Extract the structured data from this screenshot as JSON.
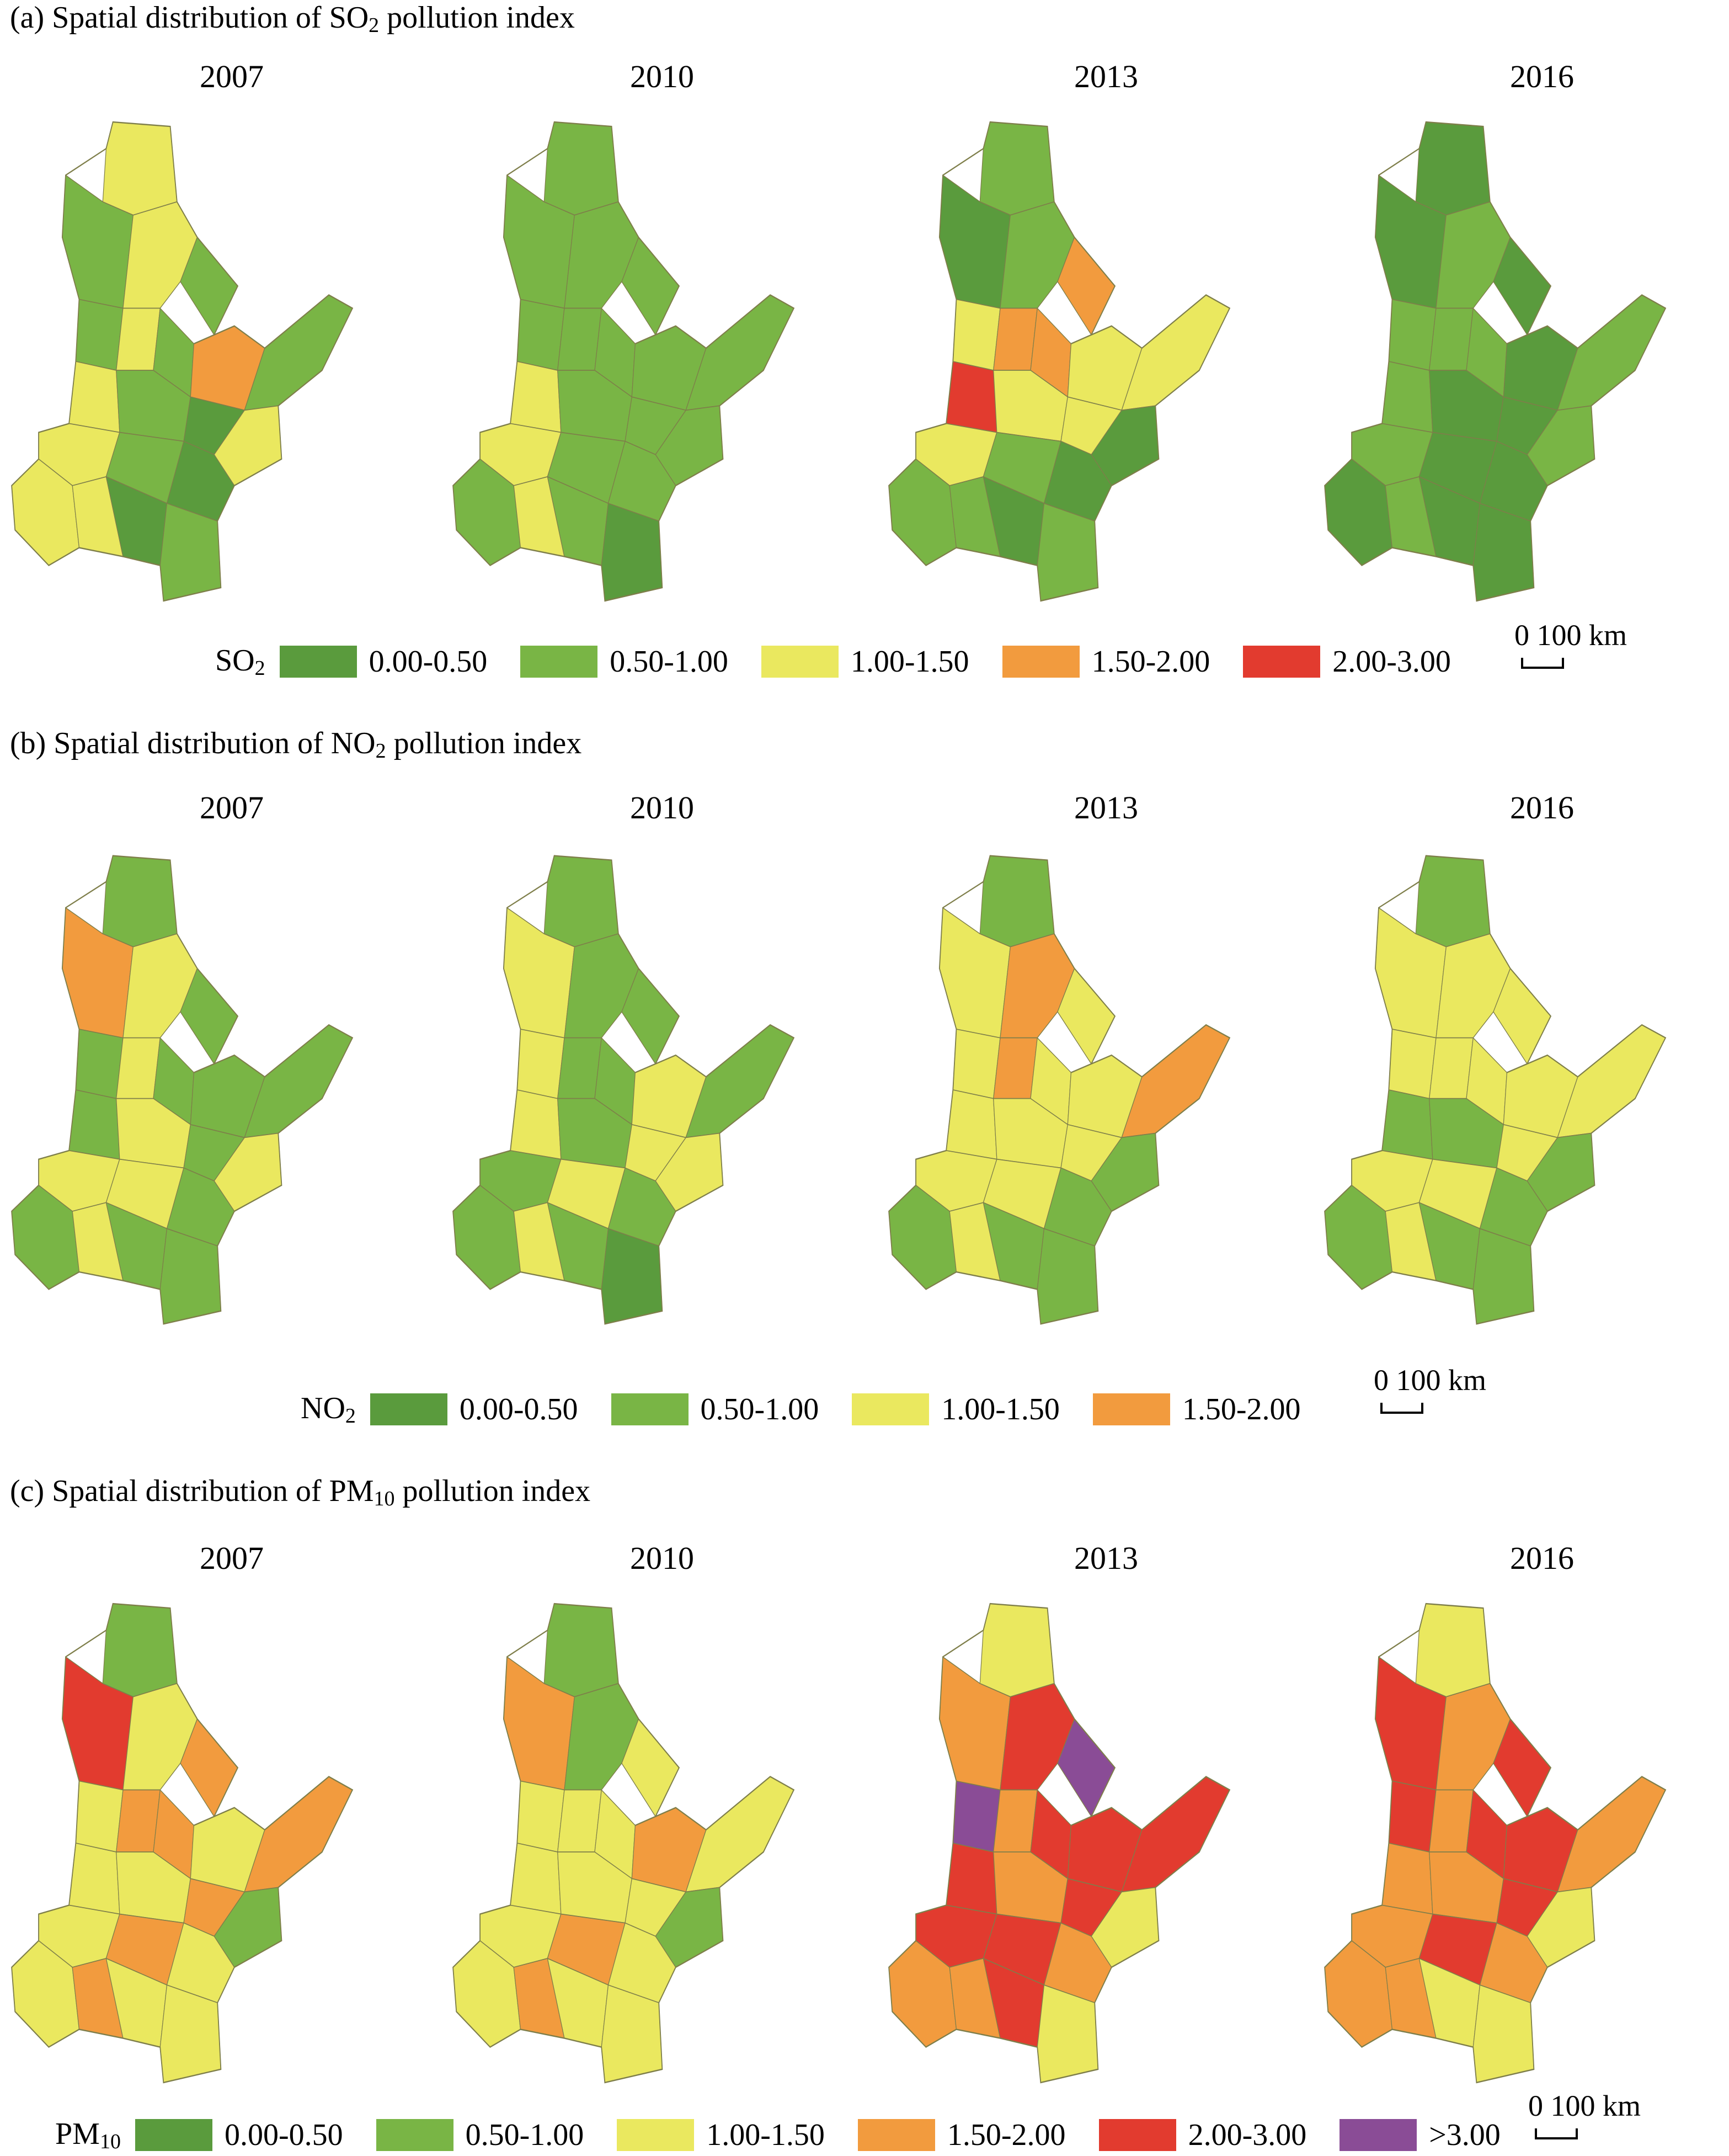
{
  "colors": {
    "c1": "#5a9b3d",
    "c2": "#79b545",
    "c3": "#eae85f",
    "c4": "#f29b3e",
    "c5": "#e23b2f",
    "c6": "#8a4c96",
    "border": "#7e7e4a"
  },
  "panels": [
    {
      "title_pre": "(a) Spatial distribution of ",
      "title_main": "SO",
      "title_sub": "2",
      "title_post": " pollution index",
      "years": [
        "2007",
        "2010",
        "2013",
        "2016"
      ],
      "legend": {
        "pollutant_main": "SO",
        "pollutant_sub": "2",
        "classes": [
          {
            "label": "0.00-0.50",
            "color": "#5a9b3d"
          },
          {
            "label": "0.50-1.00",
            "color": "#79b545"
          },
          {
            "label": "1.00-1.50",
            "color": "#eae85f"
          },
          {
            "label": "1.50-2.00",
            "color": "#f29b3e"
          },
          {
            "label": "2.00-3.00",
            "color": "#e23b2f"
          }
        ]
      },
      "scale_label": "0 100 km",
      "maps": [
        [
          "c3",
          "c2",
          "c3",
          "c2",
          "c2",
          "c3",
          "c2",
          "c4",
          "c2",
          "c3",
          "c2",
          "c3",
          "c1",
          "c3",
          "c2",
          "c1",
          "c3",
          "c3",
          "c1",
          "c2"
        ],
        [
          "c2",
          "c2",
          "c2",
          "c2",
          "c2",
          "c2",
          "c2",
          "c2",
          "c2",
          "c3",
          "c2",
          "c2",
          "c2",
          "c3",
          "c2",
          "c2",
          "c2",
          "c3",
          "c2",
          "c1"
        ],
        [
          "c2",
          "c1",
          "c2",
          "c4",
          "c3",
          "c4",
          "c4",
          "c3",
          "c3",
          "c5",
          "c3",
          "c1",
          "c3",
          "c3",
          "c2",
          "c1",
          "c2",
          "c2",
          "c1",
          "c2"
        ],
        [
          "c1",
          "c1",
          "c2",
          "c1",
          "c2",
          "c2",
          "c2",
          "c1",
          "c2",
          "c2",
          "c1",
          "c2",
          "c1",
          "c2",
          "c1",
          "c1",
          "c1",
          "c2",
          "c1",
          "c1"
        ]
      ]
    },
    {
      "title_pre": "(b) Spatial distribution of ",
      "title_main": "NO",
      "title_sub": "2",
      "title_post": " pollution index",
      "years": [
        "2007",
        "2010",
        "2013",
        "2016"
      ],
      "legend": {
        "pollutant_main": "NO",
        "pollutant_sub": "2",
        "classes": [
          {
            "label": "0.00-0.50",
            "color": "#5a9b3d"
          },
          {
            "label": "0.50-1.00",
            "color": "#79b545"
          },
          {
            "label": "1.00-1.50",
            "color": "#eae85f"
          },
          {
            "label": "1.50-2.00",
            "color": "#f29b3e"
          }
        ]
      },
      "scale_label": "0 100 km",
      "maps": [
        [
          "c2",
          "c4",
          "c3",
          "c2",
          "c2",
          "c3",
          "c2",
          "c2",
          "c2",
          "c2",
          "c3",
          "c3",
          "c2",
          "c3",
          "c3",
          "c2",
          "c2",
          "c3",
          "c2",
          "c2"
        ],
        [
          "c2",
          "c3",
          "c2",
          "c2",
          "c3",
          "c2",
          "c2",
          "c3",
          "c2",
          "c3",
          "c2",
          "c3",
          "c3",
          "c2",
          "c3",
          "c2",
          "c2",
          "c3",
          "c2",
          "c1"
        ],
        [
          "c2",
          "c3",
          "c4",
          "c3",
          "c3",
          "c4",
          "c3",
          "c3",
          "c4",
          "c3",
          "c3",
          "c2",
          "c3",
          "c3",
          "c3",
          "c2",
          "c2",
          "c3",
          "c2",
          "c2"
        ],
        [
          "c2",
          "c3",
          "c3",
          "c3",
          "c3",
          "c3",
          "c3",
          "c3",
          "c3",
          "c2",
          "c2",
          "c2",
          "c3",
          "c3",
          "c3",
          "c2",
          "c2",
          "c3",
          "c2",
          "c2"
        ]
      ]
    },
    {
      "title_pre": "(c) Spatial distribution of ",
      "title_main": "PM",
      "title_sub": "10",
      "title_post": " pollution index",
      "years": [
        "2007",
        "2010",
        "2013",
        "2016"
      ],
      "legend": {
        "pollutant_main": "PM",
        "pollutant_sub": "10",
        "classes": [
          {
            "label": "0.00-0.50",
            "color": "#5a9b3d"
          },
          {
            "label": "0.50-1.00",
            "color": "#79b545"
          },
          {
            "label": "1.00-1.50",
            "color": "#eae85f"
          },
          {
            "label": "1.50-2.00",
            "color": "#f29b3e"
          },
          {
            "label": "2.00-3.00",
            "color": "#e23b2f"
          },
          {
            "label": ">3.00",
            "color": "#8a4c96"
          }
        ]
      },
      "scale_label": "0 100 km",
      "maps": [
        [
          "c2",
          "c5",
          "c3",
          "c4",
          "c3",
          "c4",
          "c4",
          "c3",
          "c4",
          "c3",
          "c3",
          "c2",
          "c4",
          "c3",
          "c4",
          "c3",
          "c3",
          "c4",
          "c3",
          "c3"
        ],
        [
          "c2",
          "c4",
          "c2",
          "c3",
          "c3",
          "c3",
          "c3",
          "c4",
          "c3",
          "c3",
          "c3",
          "c2",
          "c3",
          "c3",
          "c4",
          "c3",
          "c3",
          "c4",
          "c3",
          "c3"
        ],
        [
          "c3",
          "c4",
          "c5",
          "c6",
          "c6",
          "c4",
          "c5",
          "c5",
          "c5",
          "c5",
          "c4",
          "c3",
          "c5",
          "c5",
          "c5",
          "c4",
          "c4",
          "c4",
          "c5",
          "c3"
        ],
        [
          "c3",
          "c5",
          "c4",
          "c5",
          "c5",
          "c4",
          "c5",
          "c5",
          "c4",
          "c4",
          "c4",
          "c3",
          "c5",
          "c4",
          "c5",
          "c4",
          "c4",
          "c4",
          "c3",
          "c3"
        ]
      ]
    }
  ]
}
